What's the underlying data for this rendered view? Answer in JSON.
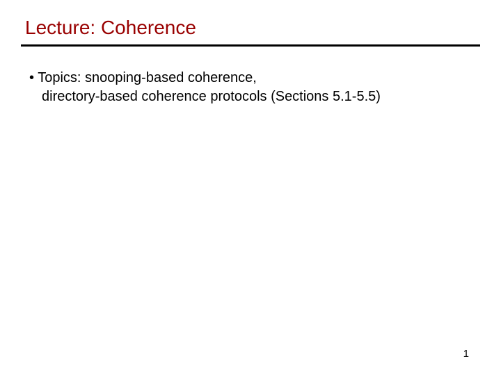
{
  "slide": {
    "title": "Lecture: Coherence",
    "title_color": "#990000",
    "title_fontsize": 28,
    "divider_color": "#000000",
    "divider_thickness": 3,
    "bullet": {
      "line1": "• Topics: snooping-based coherence,",
      "line2": "directory-based coherence protocols (Sections 5.1-5.5)"
    },
    "body_fontsize": 20,
    "body_color": "#000000",
    "page_number": "1",
    "background_color": "#ffffff"
  }
}
